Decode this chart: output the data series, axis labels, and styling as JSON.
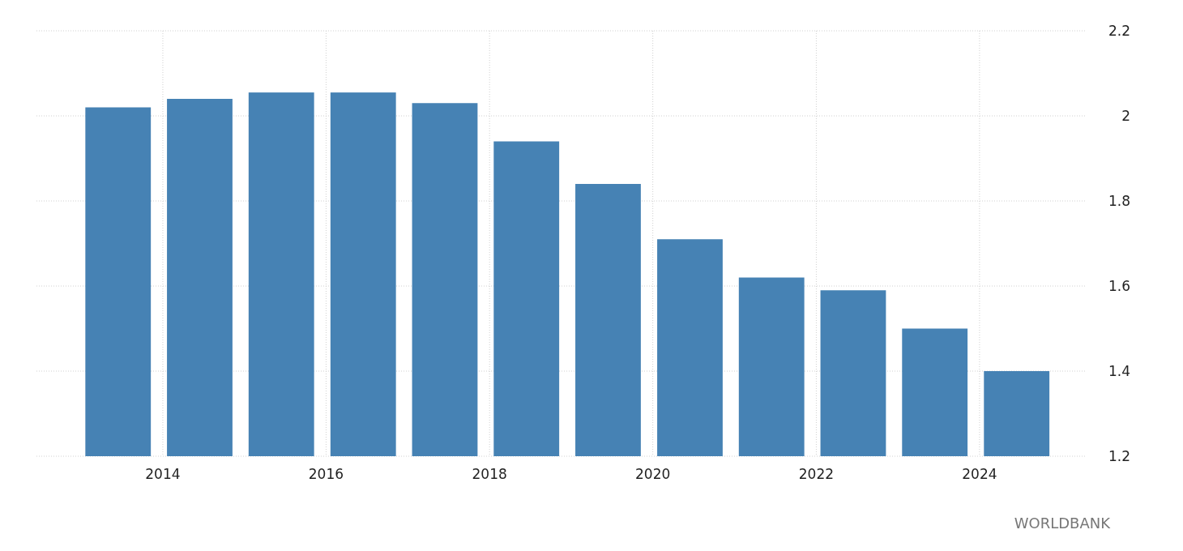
{
  "chart_data": {
    "type": "bar",
    "x": [
      "2013-06-15",
      "2014-06-15",
      "2015-06-15",
      "2016-06-15",
      "2017-06-15",
      "2018-06-15",
      "2019-06-15",
      "2020-06-15",
      "2021-06-15",
      "2022-06-15",
      "2023-06-15",
      "2024-06-15"
    ],
    "values": [
      2.02,
      2.04,
      2.055,
      2.055,
      2.03,
      1.94,
      1.84,
      1.71,
      1.62,
      1.59,
      1.5,
      1.4
    ],
    "color": "#4682b4",
    "xlim": [
      "2012-06-15",
      "2025-04-20"
    ],
    "xticks": [
      {
        "value": "2014-01-01",
        "label": "2014"
      },
      {
        "value": "2016-01-01",
        "label": "2016"
      },
      {
        "value": "2018-01-01",
        "label": "2018"
      },
      {
        "value": "2020-01-01",
        "label": "2020"
      },
      {
        "value": "2022-01-01",
        "label": "2022"
      },
      {
        "value": "2024-01-01",
        "label": "2024"
      }
    ],
    "ylim": [
      1.2,
      2.2
    ],
    "yticks": [
      1.2,
      1.4,
      1.6,
      1.8,
      2,
      2.2
    ],
    "grid": true,
    "annotations": [
      "WORLDBANK"
    ]
  }
}
